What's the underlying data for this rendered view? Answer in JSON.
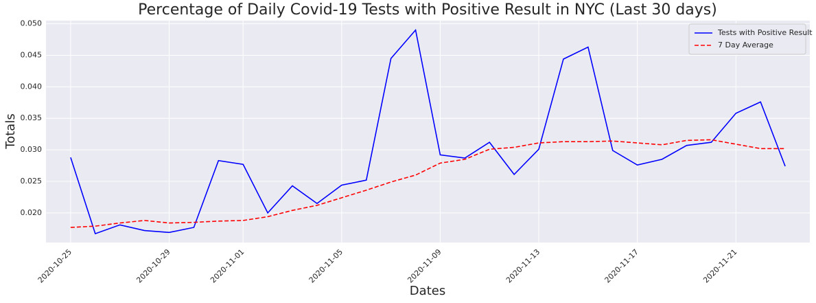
{
  "chart_data": {
    "type": "line",
    "title": "Percentage of Daily Covid-19 Tests with Positive Result in NYC (Last 30 days)",
    "x_label": "Dates",
    "y_label": "Totals",
    "x": [
      "2020-10-25",
      "2020-10-26",
      "2020-10-27",
      "2020-10-28",
      "2020-10-29",
      "2020-10-30",
      "2020-10-31",
      "2020-11-01",
      "2020-11-02",
      "2020-11-03",
      "2020-11-04",
      "2020-11-05",
      "2020-11-06",
      "2020-11-07",
      "2020-11-08",
      "2020-11-09",
      "2020-11-10",
      "2020-11-11",
      "2020-11-12",
      "2020-11-13",
      "2020-11-14",
      "2020-11-15",
      "2020-11-16",
      "2020-11-17",
      "2020-11-18",
      "2020-11-19",
      "2020-11-20",
      "2020-11-21",
      "2020-11-22",
      "2020-11-23"
    ],
    "series": [
      {
        "name": "Tests with Positive Result",
        "color": "#0000ff",
        "dash": false,
        "values": [
          0.0288,
          0.0167,
          0.0181,
          0.0172,
          0.0169,
          0.0177,
          0.0283,
          0.0277,
          0.02,
          0.0243,
          0.0215,
          0.0244,
          0.0252,
          0.0445,
          0.049,
          0.0292,
          0.0287,
          0.0312,
          0.0261,
          0.0301,
          0.0444,
          0.0463,
          0.0299,
          0.0276,
          0.0285,
          0.0307,
          0.0312,
          0.0358,
          0.0376,
          0.0274
        ]
      },
      {
        "name": "7 Day Average",
        "color": "#ff0000",
        "dash": true,
        "values": [
          0.0177,
          0.0179,
          0.0184,
          0.0188,
          0.0184,
          0.0185,
          0.0187,
          0.0188,
          0.0194,
          0.0204,
          0.0212,
          0.0224,
          0.0236,
          0.0249,
          0.026,
          0.0279,
          0.0285,
          0.0301,
          0.0304,
          0.0311,
          0.0313,
          0.0313,
          0.0314,
          0.0311,
          0.0308,
          0.0315,
          0.0316,
          0.0309,
          0.0302,
          0.0302
        ]
      }
    ],
    "xlim": [
      "2020-10-24",
      "2020-11-24"
    ],
    "xticks": [
      "2020-10-25",
      "2020-10-29",
      "2020-11-01",
      "2020-11-05",
      "2020-11-09",
      "2020-11-13",
      "2020-11-17",
      "2020-11-21"
    ],
    "ylim": [
      0.0153,
      0.0505
    ],
    "yticks": [
      {
        "value": 0.02,
        "label": "0.020"
      },
      0.025,
      {
        "value": 0.03,
        "label": "0.030"
      },
      0.035,
      {
        "value": 0.04,
        "label": "0.040"
      },
      0.045,
      {
        "value": 0.05,
        "label": "0.050"
      }
    ],
    "grid": true,
    "legend": "upper right"
  }
}
